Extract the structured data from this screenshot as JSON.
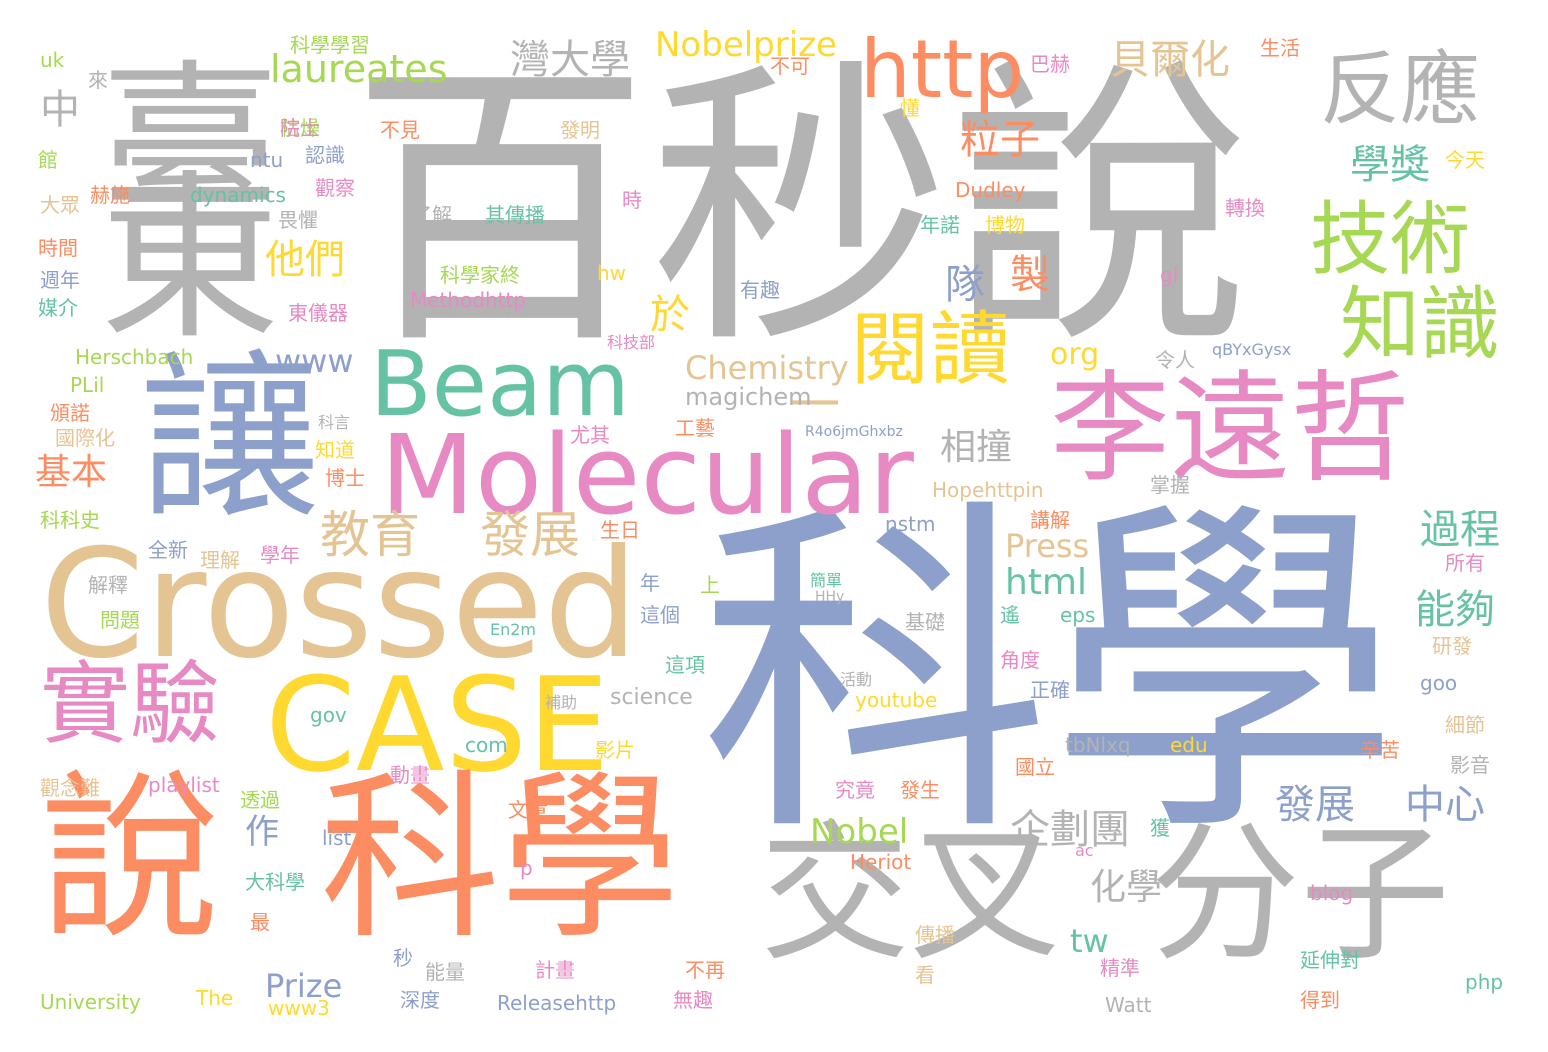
{
  "colors": {
    "gray": "#b3b3b3",
    "blue": "#8da0cb",
    "orange": "#fc8d62",
    "green": "#66c2a5",
    "pink": "#e78ac3",
    "lime": "#a6d854",
    "yellow": "#ffd92f",
    "tan": "#e5c494"
  },
  "words": [
    {
      "text": "科學",
      "color": "blue"
    },
    {
      "text": "百秒說",
      "color": "gray"
    },
    {
      "text": "臺",
      "color": "gray"
    },
    {
      "text": "東",
      "color": "gray"
    },
    {
      "text": "讓",
      "color": "blue"
    },
    {
      "text": "Crossed",
      "color": "tan"
    },
    {
      "text": "CASE",
      "color": "yellow"
    },
    {
      "text": "說",
      "color": "orange"
    },
    {
      "text": "科學",
      "color": "orange"
    },
    {
      "text": "交叉",
      "color": "gray"
    },
    {
      "text": "分子",
      "color": "gray"
    },
    {
      "text": "李遠哲",
      "color": "pink"
    },
    {
      "text": "Molecular",
      "color": "pink"
    },
    {
      "text": "Beam",
      "color": "green"
    },
    {
      "text": "http",
      "color": "orange"
    },
    {
      "text": "反應",
      "color": "gray"
    },
    {
      "text": "技術",
      "color": "lime"
    },
    {
      "text": "知識",
      "color": "lime"
    },
    {
      "text": "閱讀",
      "color": "yellow"
    },
    {
      "text": "實驗",
      "color": "pink"
    },
    {
      "text": "一",
      "color": "tan"
    },
    {
      "text": "教育",
      "color": "tan"
    },
    {
      "text": "發展",
      "color": "tan"
    },
    {
      "text": "laureates",
      "color": "lime"
    },
    {
      "text": "Nobelprize",
      "color": "yellow"
    },
    {
      "text": "灣大學",
      "color": "gray"
    },
    {
      "text": "貝爾化",
      "color": "tan"
    },
    {
      "text": "粒子",
      "color": "orange"
    },
    {
      "text": "學獎",
      "color": "green"
    },
    {
      "text": "他們",
      "color": "yellow"
    },
    {
      "text": "中",
      "color": "gray"
    },
    {
      "text": "製",
      "color": "orange"
    },
    {
      "text": "隊",
      "color": "blue"
    },
    {
      "text": "於",
      "color": "yellow"
    },
    {
      "text": "www",
      "color": "blue"
    },
    {
      "text": "Chemistry",
      "color": "tan"
    },
    {
      "text": "magichem",
      "color": "gray"
    },
    {
      "text": "org",
      "color": "yellow"
    },
    {
      "text": "相撞",
      "color": "gray"
    },
    {
      "text": "基本",
      "color": "orange"
    },
    {
      "text": "過程",
      "color": "green"
    },
    {
      "text": "能夠",
      "color": "green"
    },
    {
      "text": "html",
      "color": "green"
    },
    {
      "text": "Press",
      "color": "tan"
    },
    {
      "text": "企劃團",
      "color": "gray"
    },
    {
      "text": "發展",
      "color": "blue"
    },
    {
      "text": "中心",
      "color": "blue"
    },
    {
      "text": "Nobel",
      "color": "lime"
    },
    {
      "text": "化學",
      "color": "gray"
    },
    {
      "text": "tw",
      "color": "green"
    },
    {
      "text": "作",
      "color": "blue"
    },
    {
      "text": "Prize",
      "color": "blue"
    },
    {
      "text": "科學學習",
      "color": "lime"
    },
    {
      "text": "uk",
      "color": "lime"
    },
    {
      "text": "來",
      "color": "gray"
    },
    {
      "text": "枯燥",
      "color": "lime"
    },
    {
      "text": "院士",
      "color": "pink"
    },
    {
      "text": "不見",
      "color": "orange"
    },
    {
      "text": "ntu",
      "color": "blue"
    },
    {
      "text": "認識",
      "color": "blue"
    },
    {
      "text": "館",
      "color": "lime"
    },
    {
      "text": "赫施",
      "color": "orange"
    },
    {
      "text": "dynamics",
      "color": "green"
    },
    {
      "text": "觀察",
      "color": "pink"
    },
    {
      "text": "大眾",
      "color": "tan"
    },
    {
      "text": "畏懼",
      "color": "gray"
    },
    {
      "text": "了解",
      "color": "gray"
    },
    {
      "text": "其傳播",
      "color": "green"
    },
    {
      "text": "時間",
      "color": "orange"
    },
    {
      "text": "週年",
      "color": "blue"
    },
    {
      "text": "媒介",
      "color": "green"
    },
    {
      "text": "科學家終",
      "color": "lime"
    },
    {
      "text": "Methodhttp",
      "color": "pink"
    },
    {
      "text": "東儀器",
      "color": "pink"
    },
    {
      "text": "Herschbach",
      "color": "lime"
    },
    {
      "text": "PLil",
      "color": "lime"
    },
    {
      "text": "頒諾",
      "color": "orange"
    },
    {
      "text": "國際化",
      "color": "tan"
    },
    {
      "text": "科言",
      "color": "gray"
    },
    {
      "text": "知道",
      "color": "yellow"
    },
    {
      "text": "博士",
      "color": "orange"
    },
    {
      "text": "科科史",
      "color": "lime"
    },
    {
      "text": "全新",
      "color": "blue"
    },
    {
      "text": "理解",
      "color": "tan"
    },
    {
      "text": "學年",
      "color": "pink"
    },
    {
      "text": "生日",
      "color": "orange"
    },
    {
      "text": "解釋",
      "color": "gray"
    },
    {
      "text": "問題",
      "color": "lime"
    },
    {
      "text": "觀念難",
      "color": "tan"
    },
    {
      "text": "playlist",
      "color": "pink"
    },
    {
      "text": "透過",
      "color": "lime"
    },
    {
      "text": "list",
      "color": "blue"
    },
    {
      "text": "大科學",
      "color": "green"
    },
    {
      "text": "最",
      "color": "orange"
    },
    {
      "text": "University",
      "color": "lime"
    },
    {
      "text": "The",
      "color": "yellow"
    },
    {
      "text": "www3",
      "color": "yellow"
    },
    {
      "text": "秒",
      "color": "blue"
    },
    {
      "text": "能量",
      "color": "gray"
    },
    {
      "text": "深度",
      "color": "blue"
    },
    {
      "text": "Releasehttp",
      "color": "blue"
    },
    {
      "text": "巴赫",
      "color": "pink"
    },
    {
      "text": "生活",
      "color": "orange"
    },
    {
      "text": "不可",
      "color": "orange"
    },
    {
      "text": "發明",
      "color": "tan"
    },
    {
      "text": "懂",
      "color": "yellow"
    },
    {
      "text": "Dudley",
      "color": "orange"
    },
    {
      "text": "年諾",
      "color": "green"
    },
    {
      "text": "博物",
      "color": "yellow"
    },
    {
      "text": "轉換",
      "color": "pink"
    },
    {
      "text": "今天",
      "color": "yellow"
    },
    {
      "text": "時",
      "color": "pink"
    },
    {
      "text": "hw",
      "color": "yellow"
    },
    {
      "text": "有趣",
      "color": "blue"
    },
    {
      "text": "gl",
      "color": "pink"
    },
    {
      "text": "科技部",
      "color": "pink"
    },
    {
      "text": "令人",
      "color": "gray"
    },
    {
      "text": "qBYxGysx",
      "color": "blue"
    },
    {
      "text": "R4o6jmGhxbz",
      "color": "blue"
    },
    {
      "text": "尤其",
      "color": "pink"
    },
    {
      "text": "工藝",
      "color": "orange"
    },
    {
      "text": "Hopehttpin",
      "color": "tan"
    },
    {
      "text": "掌握",
      "color": "gray"
    },
    {
      "text": "nstm",
      "color": "blue"
    },
    {
      "text": "講解",
      "color": "orange"
    },
    {
      "text": "所有",
      "color": "pink"
    },
    {
      "text": "年",
      "color": "blue"
    },
    {
      "text": "上",
      "color": "lime"
    },
    {
      "text": "這個",
      "color": "blue"
    },
    {
      "text": "簡單",
      "color": "green"
    },
    {
      "text": "HHy",
      "color": "gray"
    },
    {
      "text": "基礎",
      "color": "gray"
    },
    {
      "text": "遙",
      "color": "green"
    },
    {
      "text": "eps",
      "color": "green"
    },
    {
      "text": "En2m",
      "color": "green"
    },
    {
      "text": "研發",
      "color": "tan"
    },
    {
      "text": "這項",
      "color": "green"
    },
    {
      "text": "角度",
      "color": "pink"
    },
    {
      "text": "goo",
      "color": "blue"
    },
    {
      "text": "活動",
      "color": "gray"
    },
    {
      "text": "正確",
      "color": "blue"
    },
    {
      "text": "science",
      "color": "gray"
    },
    {
      "text": "補助",
      "color": "gray"
    },
    {
      "text": "youtube",
      "color": "yellow"
    },
    {
      "text": "細節",
      "color": "tan"
    },
    {
      "text": "gov",
      "color": "green"
    },
    {
      "text": "com",
      "color": "green"
    },
    {
      "text": "影片",
      "color": "yellow"
    },
    {
      "text": "tbNlxq",
      "color": "gray"
    },
    {
      "text": "edu",
      "color": "yellow"
    },
    {
      "text": "辛苦",
      "color": "orange"
    },
    {
      "text": "動畫",
      "color": "pink"
    },
    {
      "text": "國立",
      "color": "orange"
    },
    {
      "text": "影音",
      "color": "gray"
    },
    {
      "text": "究竟",
      "color": "pink"
    },
    {
      "text": "發生",
      "color": "orange"
    },
    {
      "text": "文章",
      "color": "orange"
    },
    {
      "text": "獲",
      "color": "green"
    },
    {
      "text": "ac",
      "color": "pink"
    },
    {
      "text": "Heriot",
      "color": "orange"
    },
    {
      "text": "p",
      "color": "pink"
    },
    {
      "text": "blog",
      "color": "pink"
    },
    {
      "text": "傳播",
      "color": "tan"
    },
    {
      "text": "計畫",
      "color": "pink"
    },
    {
      "text": "不再",
      "color": "orange"
    },
    {
      "text": "精準",
      "color": "pink"
    },
    {
      "text": "延伸對",
      "color": "green"
    },
    {
      "text": "看",
      "color": "tan"
    },
    {
      "text": "無趣",
      "color": "pink"
    },
    {
      "text": "Watt",
      "color": "gray"
    },
    {
      "text": "得到",
      "color": "orange"
    },
    {
      "text": "php",
      "color": "green"
    }
  ]
}
